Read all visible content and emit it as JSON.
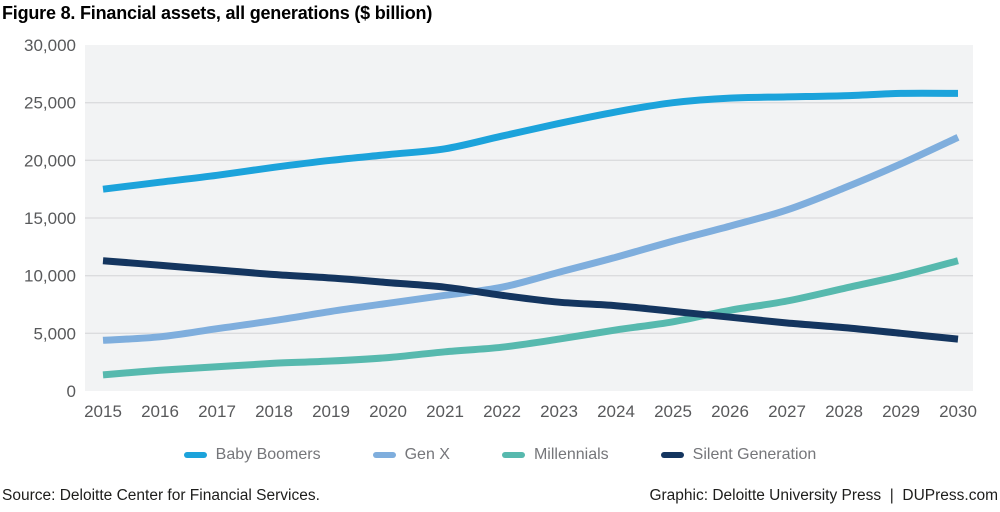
{
  "chart_data": {
    "type": "line",
    "title": "Figure 8. Financial assets, all generations ($ billion)",
    "xlabel": "",
    "ylabel": "",
    "x": [
      2015,
      2016,
      2017,
      2018,
      2019,
      2020,
      2021,
      2022,
      2023,
      2024,
      2025,
      2026,
      2027,
      2028,
      2029,
      2030
    ],
    "ylim": [
      0,
      30000
    ],
    "grid": true,
    "legend_position": "bottom",
    "yticks": [
      {
        "value": 0,
        "label": "0"
      },
      {
        "value": 5000,
        "label": "5,000"
      },
      {
        "value": 10000,
        "label": "10,000"
      },
      {
        "value": 15000,
        "label": "15,000"
      },
      {
        "value": 20000,
        "label": "20,000"
      },
      {
        "value": 25000,
        "label": "25,000"
      },
      {
        "value": 30000,
        "label": "30,000"
      }
    ],
    "series": [
      {
        "name": "Baby Boomers",
        "color": "#1ca3db",
        "values": [
          17500,
          18100,
          18700,
          19400,
          20000,
          20500,
          21000,
          22100,
          23200,
          24200,
          25000,
          25400,
          25500,
          25600,
          25800,
          25800
        ]
      },
      {
        "name": "Gen X",
        "color": "#7faedd",
        "values": [
          4400,
          4700,
          5400,
          6100,
          6900,
          7600,
          8300,
          9000,
          10300,
          11600,
          13000,
          14300,
          15700,
          17600,
          19700,
          22000
        ]
      },
      {
        "name": "Millennials",
        "color": "#57b9ae",
        "values": [
          1400,
          1800,
          2100,
          2400,
          2600,
          2900,
          3400,
          3800,
          4500,
          5300,
          6000,
          7000,
          7800,
          8900,
          10000,
          11300
        ]
      },
      {
        "name": "Silent Generation",
        "color": "#14355f",
        "values": [
          11300,
          10900,
          10500,
          10100,
          9800,
          9400,
          9000,
          8300,
          7700,
          7400,
          6900,
          6400,
          5900,
          5500,
          5000,
          4500
        ]
      }
    ]
  },
  "footer": {
    "source": "Source: Deloitte Center for Financial Services.",
    "credit": "Graphic: Deloitte University Press  |  DUPress.com"
  },
  "colors": {
    "plot_background": "#f2f3f4",
    "gridline": "#dbdcde",
    "tick_text": "#58595b",
    "legend_text": "#75767a",
    "title_text": "#000000",
    "footer_text": "#1d1d1b"
  }
}
